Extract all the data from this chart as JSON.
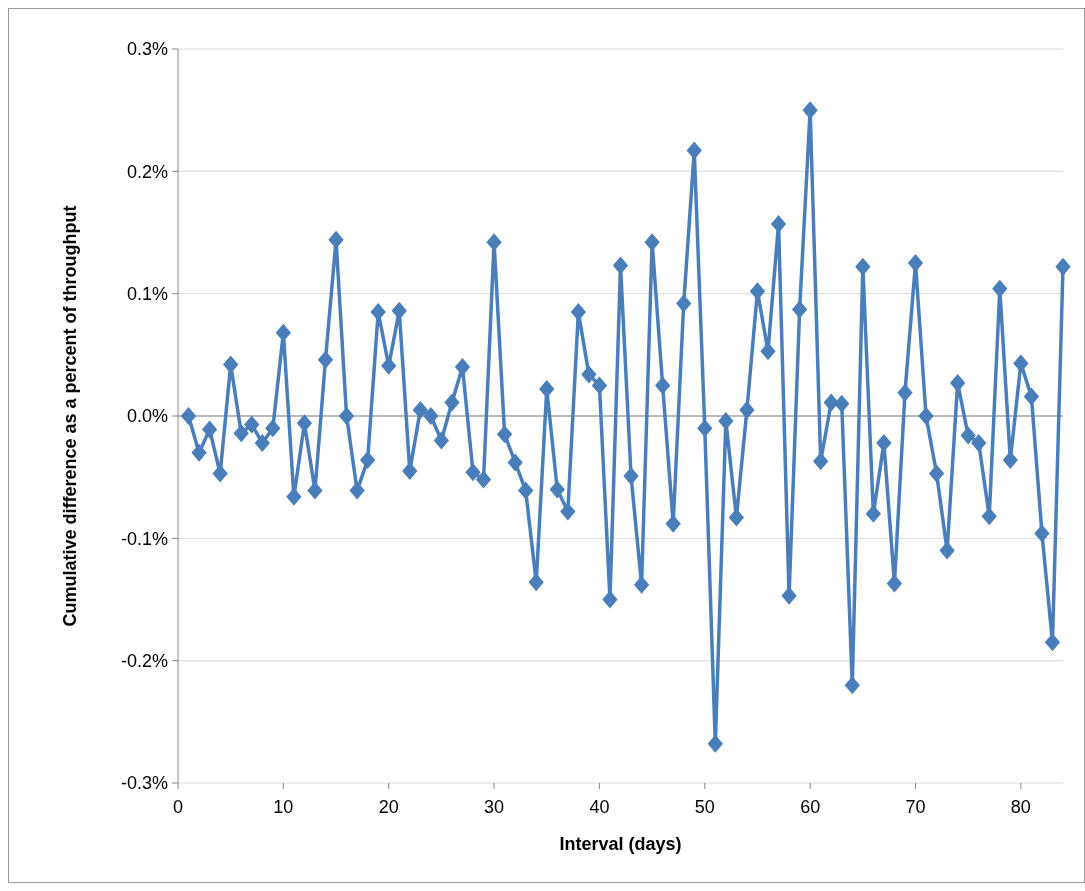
{
  "chart_data": {
    "type": "line",
    "xlabel": "Interval (days)",
    "ylabel": "Cumulative difference as a percent of throughput",
    "x": [
      1,
      2,
      3,
      4,
      5,
      6,
      7,
      8,
      9,
      10,
      11,
      12,
      13,
      14,
      15,
      16,
      17,
      18,
      19,
      20,
      21,
      22,
      23,
      24,
      25,
      26,
      27,
      28,
      29,
      30,
      31,
      32,
      33,
      34,
      35,
      36,
      37,
      38,
      39,
      40,
      41,
      42,
      43,
      44,
      45,
      46,
      47,
      48,
      49,
      50,
      51,
      52,
      53,
      54,
      55,
      56,
      57,
      58,
      59,
      60,
      61,
      62,
      63,
      64,
      65,
      66,
      67,
      68,
      69,
      70,
      71,
      72,
      73,
      74,
      75,
      76,
      77,
      78,
      79,
      80,
      81,
      82,
      83,
      84
    ],
    "series": [
      {
        "color": "#4a7ebb",
        "values": [
          0,
          -0.03,
          -0.011,
          -0.047,
          0.042,
          -0.014,
          -0.007,
          -0.022,
          -0.01,
          0.068,
          -0.066,
          -0.006,
          -0.061,
          0.046,
          0.144,
          0,
          -0.061,
          -0.036,
          0.085,
          0.041,
          0.086,
          -0.045,
          0.005,
          0,
          -0.02,
          0.011,
          0.04,
          -0.046,
          -0.052,
          0.142,
          -0.015,
          -0.038,
          -0.061,
          -0.136,
          0.022,
          -0.06,
          -0.078,
          0.085,
          0.034,
          0.025,
          -0.15,
          0.123,
          -0.049,
          -0.138,
          0.142,
          0.025,
          -0.088,
          0.092,
          0.217,
          -0.01,
          -0.268,
          -0.004,
          -0.083,
          0.005,
          0.102,
          0.053,
          0.157,
          -0.147,
          0.087,
          0.25,
          -0.037,
          0.011,
          0.01,
          -0.22,
          0.122,
          -0.08,
          -0.022,
          -0.137,
          0.019,
          0.125,
          0,
          -0.047,
          -0.11,
          0.027,
          -0.016,
          -0.022,
          -0.082,
          0.104,
          -0.036,
          0.043,
          0.016,
          -0.096,
          -0.185,
          0.122
        ]
      }
    ],
    "xlim": [
      0,
      84
    ],
    "xticks": [
      0,
      10,
      20,
      30,
      40,
      50,
      60,
      70,
      80
    ],
    "ylim": [
      -0.3,
      0.3
    ],
    "yticks": [
      {
        "value": -0.3,
        "label": "-0.3%"
      },
      {
        "value": -0.2,
        "label": "-0.2%"
      },
      {
        "value": -0.1,
        "label": "-0.1%"
      },
      {
        "value": 0,
        "label": "0.0%"
      },
      {
        "value": 0.1,
        "label": "0.1%"
      },
      {
        "value": 0.2,
        "label": "0.2%"
      },
      {
        "value": 0.3,
        "label": "0.3%"
      }
    ],
    "grid": "y",
    "marker": "diamond",
    "line_style": "solid"
  }
}
